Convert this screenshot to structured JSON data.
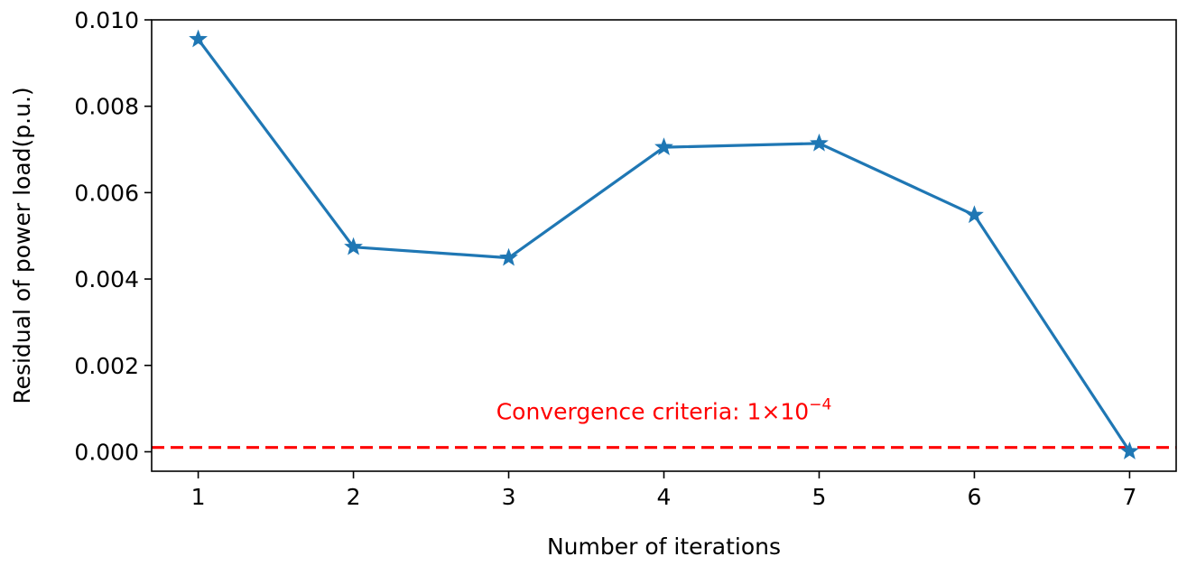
{
  "chart_data": {
    "type": "line",
    "xlabel": "Number of iterations",
    "ylabel": "Residual of power load(p.u.)",
    "x": [
      1,
      2,
      3,
      4,
      5,
      6,
      7
    ],
    "series": [
      {
        "values": [
          0.00955,
          0.00474,
          0.00449,
          0.00705,
          0.00714,
          0.00548,
          1e-05
        ],
        "color": "#1f77b4",
        "marker": "star"
      }
    ],
    "xlim": [
      0.7,
      7.3
    ],
    "ylim": [
      -0.00045,
      0.01
    ],
    "xticks": [
      1,
      2,
      3,
      4,
      5,
      6,
      7
    ],
    "xtick_labels": [
      "1",
      "2",
      "3",
      "4",
      "5",
      "6",
      "7"
    ],
    "yticks": [
      0,
      0.002,
      0.004,
      0.006,
      0.008,
      0.01
    ],
    "ytick_labels": [
      "0.000",
      "0.002",
      "0.004",
      "0.006",
      "0.008",
      "0.010"
    ],
    "reference_line": {
      "value": 0.0001,
      "color": "#ff0000",
      "style": "dashed"
    },
    "annotation": {
      "prefix": "Convergence criteria: 1×10",
      "exponent": "−4",
      "x": 4,
      "y": 0.00075,
      "color": "#ff0000"
    },
    "grid": false,
    "legend": "none"
  }
}
